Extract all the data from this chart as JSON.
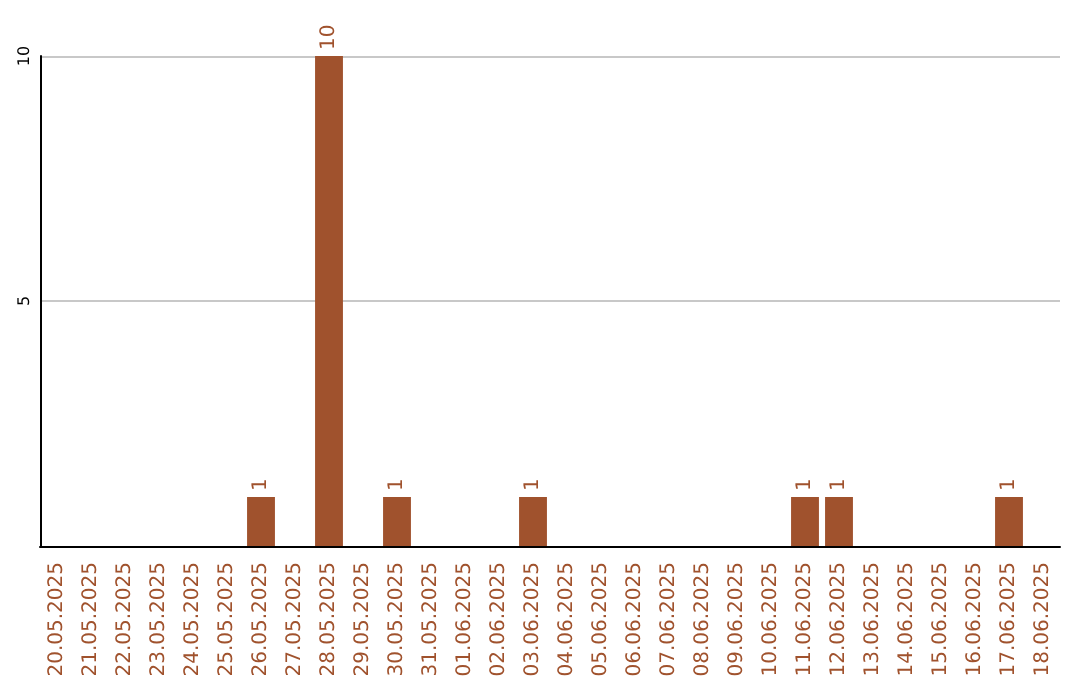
{
  "chart_data": {
    "type": "bar",
    "categories": [
      "20.05.2025",
      "21.05.2025",
      "22.05.2025",
      "23.05.2025",
      "24.05.2025",
      "25.05.2025",
      "26.05.2025",
      "27.05.2025",
      "28.05.2025",
      "29.05.2025",
      "30.05.2025",
      "31.05.2025",
      "01.06.2025",
      "02.06.2025",
      "03.06.2025",
      "04.06.2025",
      "05.06.2025",
      "06.06.2025",
      "07.06.2025",
      "08.06.2025",
      "09.06.2025",
      "10.06.2025",
      "11.06.2025",
      "12.06.2025",
      "13.06.2025",
      "14.06.2025",
      "15.06.2025",
      "16.06.2025",
      "17.06.2025",
      "18.06.2025"
    ],
    "values": [
      0,
      0,
      0,
      0,
      0,
      0,
      1,
      0,
      10,
      0,
      1,
      0,
      0,
      0,
      1,
      0,
      0,
      0,
      0,
      0,
      0,
      0,
      1,
      1,
      0,
      0,
      0,
      0,
      1,
      0
    ],
    "value_labels": [
      null,
      null,
      null,
      null,
      null,
      null,
      "1",
      null,
      "10",
      null,
      "1",
      null,
      null,
      null,
      "1",
      null,
      null,
      null,
      null,
      null,
      null,
      null,
      "1",
      "1",
      null,
      null,
      null,
      null,
      "1",
      null
    ],
    "color": "#a0522d",
    "ylim": [
      0,
      10
    ],
    "yticks": [
      {
        "value": 0,
        "label": null
      },
      5,
      10
    ],
    "grid": "y"
  }
}
